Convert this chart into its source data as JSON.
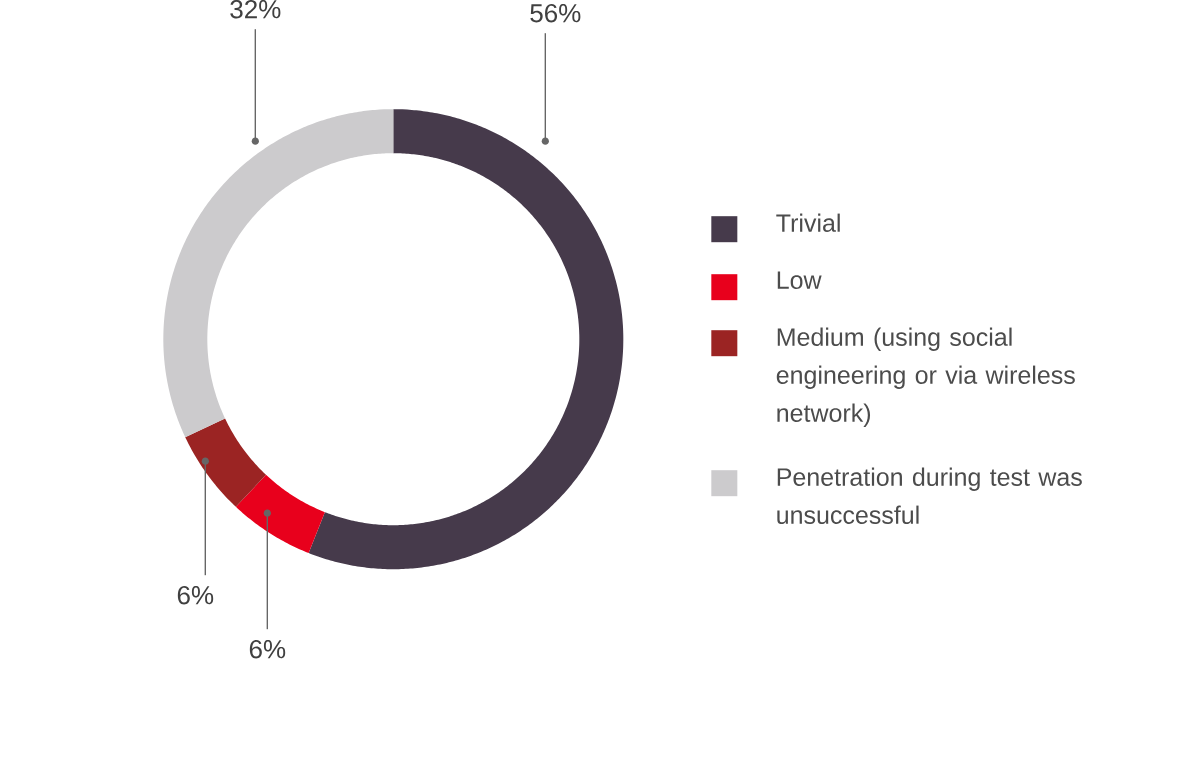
{
  "chart_data": {
    "type": "donut",
    "categories": [
      "Trivial",
      "Low",
      "Medium (using social engineering or via wireless network)",
      "Penetration during test was unsuccessful"
    ],
    "values": [
      56,
      6,
      6,
      32
    ],
    "colors": [
      "#463a4b",
      "#e8001c",
      "#9b2423",
      "#cccbcd"
    ],
    "value_labels": [
      "56%",
      "6%",
      "6%",
      "32%"
    ],
    "legend": "right"
  }
}
